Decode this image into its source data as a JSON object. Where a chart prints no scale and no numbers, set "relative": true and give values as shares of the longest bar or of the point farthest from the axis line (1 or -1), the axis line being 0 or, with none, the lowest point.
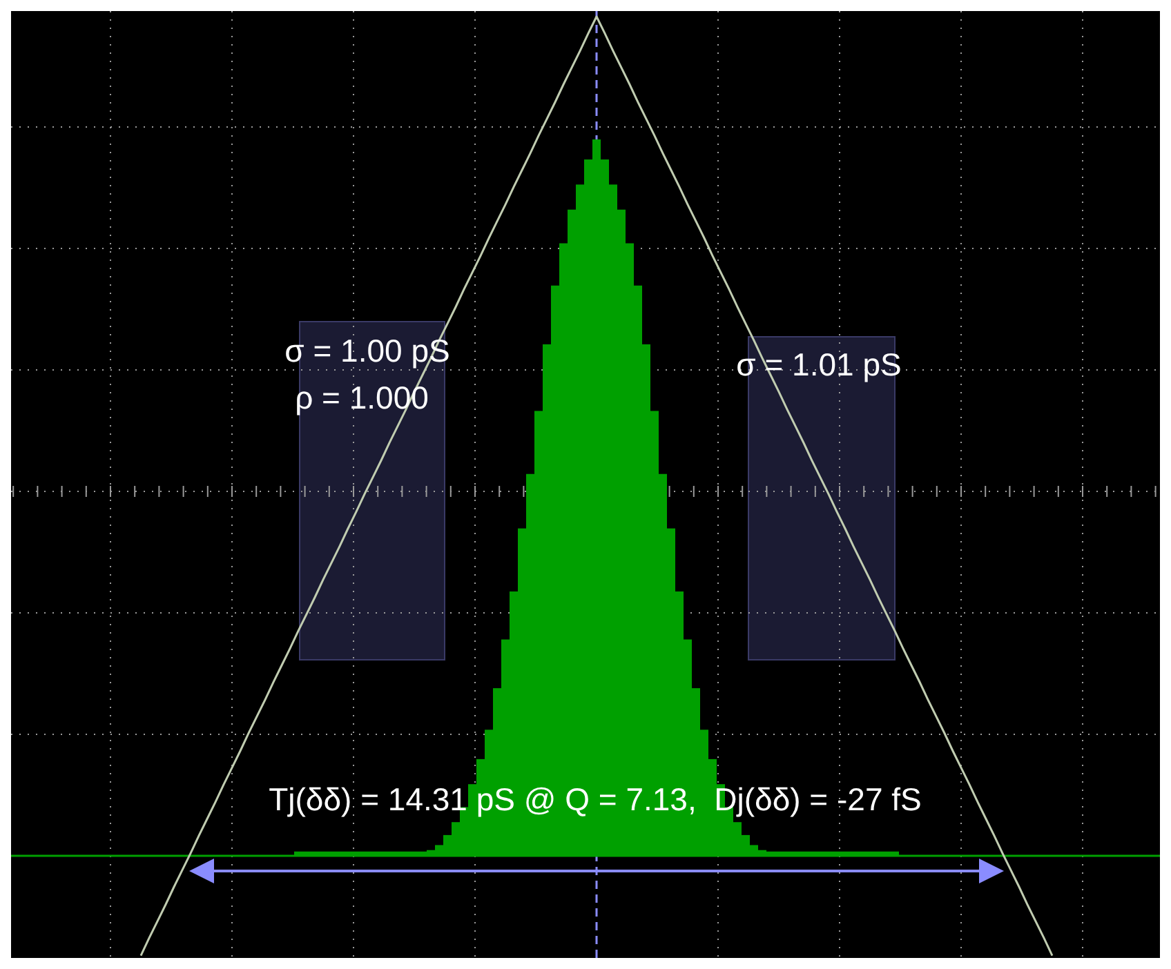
{
  "chart_data": [
    {
      "type": "bar",
      "relative": true,
      "grid": true,
      "categories": [
        null,
        null,
        null,
        null,
        null,
        null,
        null,
        null,
        null,
        null,
        null,
        null,
        null,
        null,
        null,
        null,
        null,
        null,
        null,
        null,
        null,
        null,
        null,
        null,
        null,
        null,
        null,
        null,
        null,
        null,
        null,
        null,
        null,
        null,
        null,
        null,
        null,
        null,
        null,
        null,
        null,
        null,
        null,
        null,
        null,
        null,
        null,
        null,
        null,
        null,
        null,
        null,
        null,
        null,
        null,
        null,
        null,
        null,
        null,
        null,
        null,
        null,
        null,
        null,
        null,
        null,
        null,
        null,
        null,
        null,
        null,
        null,
        null
      ],
      "series": [
        {
          "color": "#00a000",
          "values": [
            0.006,
            0.006,
            0.006,
            0.006,
            0.006,
            0.006,
            0.006,
            0.006,
            0.006,
            0.006,
            0.006,
            0.006,
            0.006,
            0.006,
            0.006,
            0.006,
            0.008,
            0.015,
            0.029,
            0.047,
            0.068,
            0.1,
            0.135,
            0.176,
            0.234,
            0.302,
            0.369,
            0.457,
            0.533,
            0.621,
            0.714,
            0.796,
            0.855,
            0.902,
            0.937,
            0.972,
            1,
            0.972,
            0.937,
            0.902,
            0.855,
            0.796,
            0.714,
            0.621,
            0.533,
            0.457,
            0.369,
            0.302,
            0.234,
            0.176,
            0.135,
            0.1,
            0.068,
            0.047,
            0.029,
            0.015,
            0.008,
            0.006,
            0.006,
            0.006,
            0.006,
            0.006,
            0.006,
            0.006,
            0.006,
            0.006,
            0.006,
            0.006,
            0.006,
            0.006,
            0.006,
            0.006,
            0.006
          ]
        }
      ],
      "annotations": [
        "σ = 1.00 pS",
        "ρ = 1.000",
        "σ = 1.01 pS",
        "Tj(δδ) = 14.31 pS @ Q = 7.13,  Dj(δδ) = -27 fS"
      ]
    },
    {
      "type": "line",
      "relative": true,
      "categories": [
        null,
        null,
        null,
        null,
        null,
        null,
        null,
        null,
        null,
        null,
        null,
        null,
        null,
        null,
        null,
        null,
        null,
        null,
        null,
        null,
        null,
        null,
        null,
        null,
        null,
        null,
        null,
        null,
        null,
        null,
        null,
        null,
        null,
        null,
        null,
        null,
        null,
        null,
        null,
        null,
        null,
        null,
        null,
        null,
        null,
        null,
        null,
        null,
        null,
        null,
        null,
        null,
        null,
        null,
        null,
        null,
        null,
        null,
        null,
        null,
        null,
        null,
        null,
        null,
        null,
        null,
        null,
        null,
        null,
        null,
        null,
        null,
        null,
        null,
        null,
        null,
        null,
        null,
        null,
        null,
        null,
        null,
        null,
        null,
        null,
        null,
        null,
        null,
        null,
        null,
        null,
        null,
        null,
        null,
        null,
        null,
        null,
        null,
        null,
        null,
        null,
        null,
        null,
        null,
        null,
        null,
        null,
        null,
        null,
        null,
        null
      ],
      "series": [
        {
          "color": "#c0ccb0",
          "values": [
            -0.119,
            -0.098,
            -0.078,
            -0.058,
            -0.037,
            -0.017,
            0.003,
            0.024,
            0.044,
            0.064,
            0.085,
            0.105,
            0.125,
            0.146,
            0.166,
            0.186,
            0.207,
            0.227,
            0.247,
            0.268,
            0.288,
            0.308,
            0.329,
            0.349,
            0.369,
            0.39,
            0.41,
            0.431,
            0.451,
            0.471,
            0.492,
            0.512,
            0.532,
            0.553,
            0.573,
            0.593,
            0.614,
            0.634,
            0.654,
            0.675,
            0.695,
            0.715,
            0.736,
            0.756,
            0.776,
            0.797,
            0.817,
            0.837,
            0.858,
            0.878,
            0.898,
            0.919,
            0.939,
            0.959,
            0.98,
            1,
            0.98,
            0.959,
            0.939,
            0.919,
            0.898,
            0.878,
            0.858,
            0.837,
            0.817,
            0.797,
            0.776,
            0.756,
            0.736,
            0.715,
            0.695,
            0.675,
            0.654,
            0.634,
            0.614,
            0.593,
            0.573,
            0.553,
            0.532,
            0.512,
            0.492,
            0.471,
            0.451,
            0.431,
            0.41,
            0.39,
            0.369,
            0.349,
            0.329,
            0.308,
            0.288,
            0.268,
            0.247,
            0.227,
            0.207,
            0.186,
            0.166,
            0.146,
            0.125,
            0.105,
            0.085,
            0.064,
            0.044,
            0.024,
            0.003,
            -0.017,
            -0.037,
            -0.058,
            -0.078,
            -0.098,
            -0.119
          ]
        }
      ]
    }
  ]
}
